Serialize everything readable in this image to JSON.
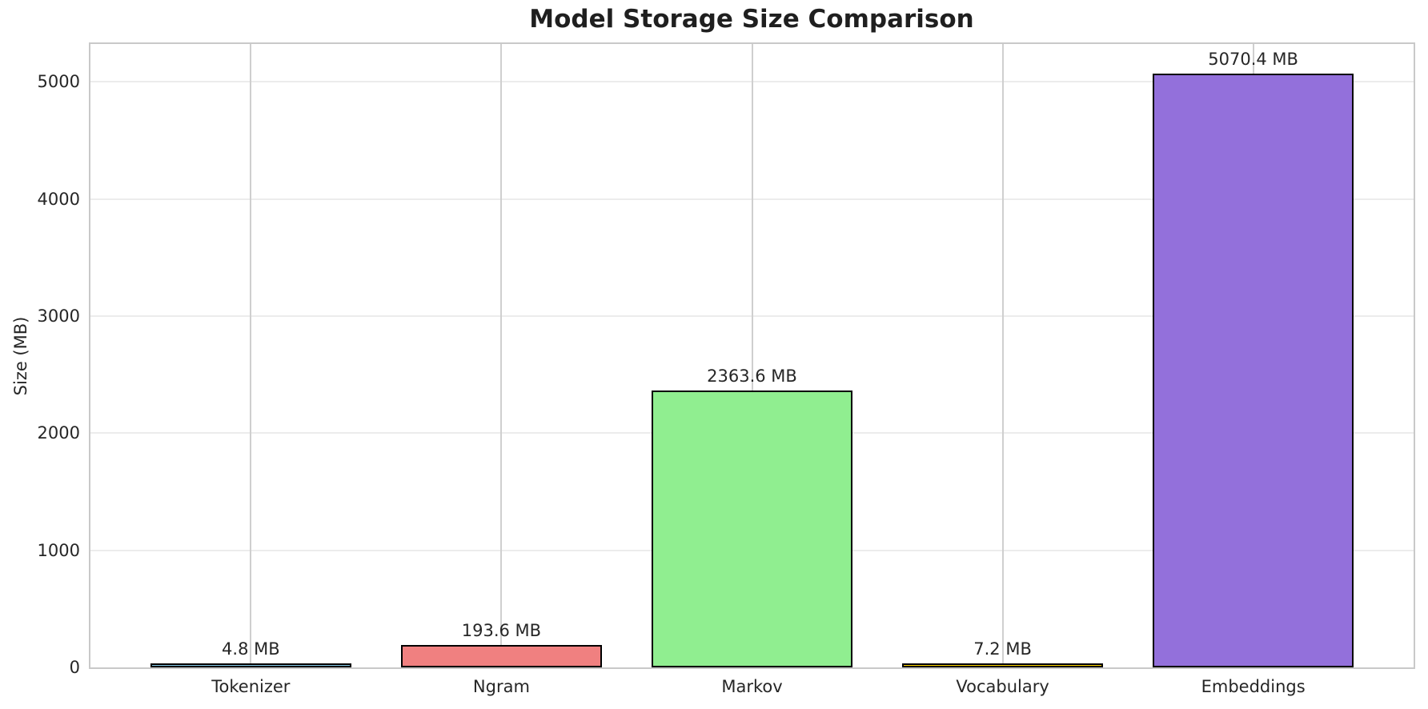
{
  "chart_data": {
    "type": "bar",
    "title": "Model Storage Size Comparison",
    "ylabel": "Size (MB)",
    "xlabel": "",
    "categories": [
      "Tokenizer",
      "Ngram",
      "Markov",
      "Vocabulary",
      "Embeddings"
    ],
    "values": [
      4.8,
      193.6,
      2363.6,
      7.2,
      5070.4
    ],
    "value_labels": [
      "4.8 MB",
      "193.6 MB",
      "2363.6 MB",
      "7.2 MB",
      "5070.4 MB"
    ],
    "bar_colors": [
      "#87CEEB",
      "#F08080",
      "#90EE90",
      "#FFD700",
      "#9370DB"
    ],
    "bar_edge_color": "#000000",
    "yticks": [
      0,
      1000,
      2000,
      3000,
      4000,
      5000
    ],
    "ylim": [
      0,
      5324
    ],
    "grid": true,
    "legend_position": "none",
    "colors": {
      "text": "#262626",
      "title_text": "#1f1f1f",
      "spine": "#c9c9c9",
      "vertical_gridline": "#cfcfcf",
      "horizontal_gridline": "#ececec",
      "background": "#ffffff"
    }
  }
}
